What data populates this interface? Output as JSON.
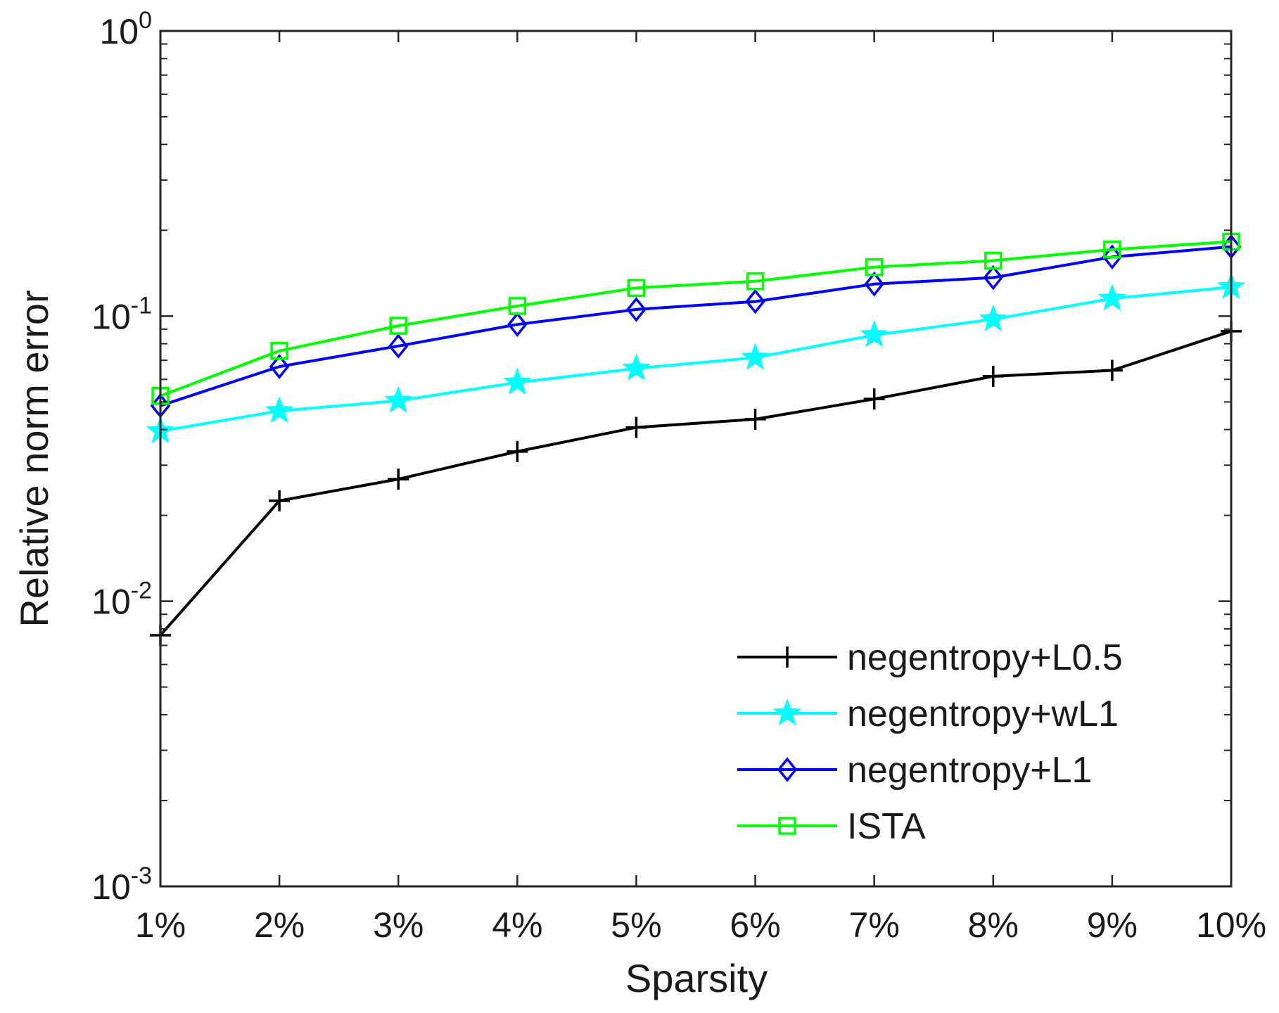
{
  "chart_data": {
    "type": "line",
    "title": "",
    "xlabel": "Sparsity",
    "ylabel": "Relative norm error",
    "yscale": "log",
    "ylim": [
      0.001,
      1
    ],
    "y_ticks": [
      {
        "value": 1,
        "base": "10",
        "exp": "0"
      },
      {
        "value": 0.1,
        "base": "10",
        "exp": "-1"
      },
      {
        "value": 0.01,
        "base": "10",
        "exp": "-2"
      },
      {
        "value": 0.001,
        "base": "10",
        "exp": "-3"
      }
    ],
    "categories": [
      "1%",
      "2%",
      "3%",
      "4%",
      "5%",
      "6%",
      "7%",
      "8%",
      "9%",
      "10%"
    ],
    "legend_position": "bottom-right",
    "grid": false,
    "series": [
      {
        "name": "negentropy+L0.5",
        "color": "#000000",
        "marker": "plus",
        "values": [
          0.0076,
          0.0225,
          0.0268,
          0.0335,
          0.0407,
          0.0435,
          0.0512,
          0.0615,
          0.0645,
          0.0885
        ]
      },
      {
        "name": "negentropy+wL1",
        "color": "#00ffff",
        "marker": "star",
        "values": [
          0.0395,
          0.0465,
          0.0505,
          0.0585,
          0.0655,
          0.0715,
          0.0858,
          0.0975,
          0.1152,
          0.1265
        ]
      },
      {
        "name": "negentropy+L1",
        "color": "#0000ff",
        "marker": "diamond",
        "values": [
          0.0485,
          0.0665,
          0.0785,
          0.0935,
          0.1055,
          0.1125,
          0.1295,
          0.1365,
          0.1612,
          0.1752
        ]
      },
      {
        "name": "ISTA",
        "color": "#00ff00",
        "marker": "square",
        "values": [
          0.0525,
          0.0755,
          0.0925,
          0.1085,
          0.1255,
          0.1325,
          0.1485,
          0.1565,
          0.1712,
          0.1825
        ]
      }
    ]
  }
}
